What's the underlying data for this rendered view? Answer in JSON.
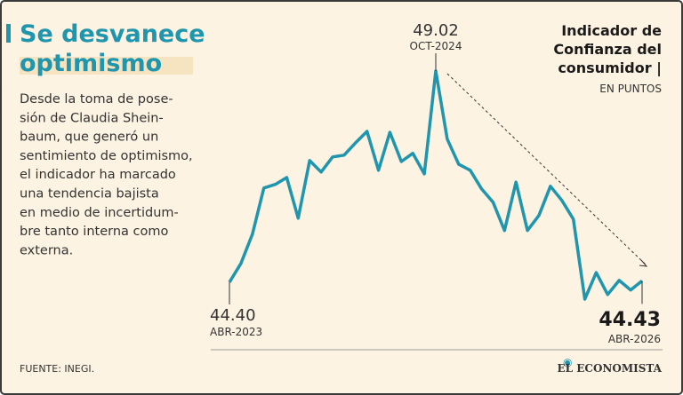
{
  "chart_data": {
    "type": "line",
    "headline_lines": [
      "Se desvanece",
      "optimismo"
    ],
    "description_lines": [
      "Desde la toma de pose-",
      "sión de Claudia Shein-",
      "baum, que generó un",
      "sentimiento de optimismo,",
      "el indicador ha marcado",
      "una tendencia bajista",
      "en medio de incertidum-",
      "bre tanto interna como",
      "externa."
    ],
    "title_lines": [
      "Indicador de",
      "Confianza del",
      "consumidor |"
    ],
    "subtitle": "EN PUNTOS",
    "source": "FUENTE: INEGI.",
    "brand": "EL ECONOMISTA",
    "color": "#1f96ae",
    "categories": [
      "ABR-2023",
      null,
      null,
      null,
      null,
      null,
      null,
      null,
      null,
      null,
      null,
      null,
      null,
      null,
      null,
      null,
      null,
      null,
      "OCT-2024",
      null,
      null,
      null,
      null,
      null,
      null,
      null,
      null,
      null,
      null,
      null,
      null,
      null,
      null,
      null,
      null,
      null,
      "ABR-2026"
    ],
    "values": [
      44.4,
      44.81,
      45.45,
      46.46,
      46.54,
      46.69,
      45.8,
      47.06,
      46.81,
      47.14,
      47.18,
      47.45,
      47.7,
      46.85,
      47.68,
      47.04,
      47.22,
      46.77,
      49.02,
      47.53,
      46.98,
      46.85,
      46.44,
      46.15,
      45.53,
      46.59,
      45.53,
      45.86,
      46.5,
      46.19,
      45.78,
      44.03,
      44.61,
      44.13,
      44.44,
      44.23,
      44.43
    ],
    "value_labels": [
      "44.40",
      null,
      null,
      null,
      null,
      null,
      null,
      null,
      null,
      null,
      null,
      null,
      null,
      null,
      null,
      null,
      null,
      null,
      "49.02",
      null,
      null,
      null,
      null,
      null,
      null,
      null,
      null,
      null,
      null,
      null,
      null,
      null,
      null,
      null,
      null,
      null,
      "44.43"
    ]
  }
}
